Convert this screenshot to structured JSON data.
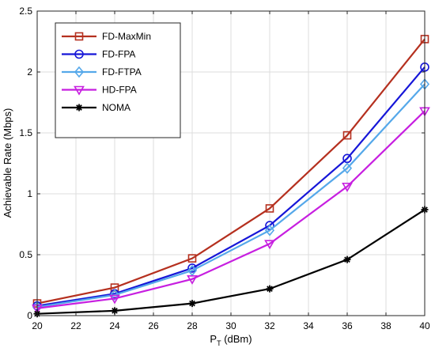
{
  "chart_data": {
    "type": "line",
    "title": "",
    "xlabel_main": "P",
    "xlabel_sub": "T",
    "xlabel_rest": " (dBm)",
    "ylabel": "Achievable Rate (Mbps)",
    "xlim": [
      20,
      40
    ],
    "ylim": [
      0,
      2.5
    ],
    "xticks": [
      "20",
      "22",
      "24",
      "26",
      "28",
      "30",
      "32",
      "34",
      "36",
      "38",
      "40"
    ],
    "yticks": [
      "0",
      "0.5",
      "1",
      "1.5",
      "2",
      "2.5"
    ],
    "grid": true,
    "legend_position": "top-left",
    "x": [
      20,
      24,
      28,
      32,
      36,
      40
    ],
    "series": [
      {
        "name": "FD-MaxMin",
        "color": "#b5301f",
        "marker": "square",
        "values": [
          0.1,
          0.23,
          0.47,
          0.88,
          1.48,
          2.27
        ]
      },
      {
        "name": "FD-FPA",
        "color": "#1616d8",
        "marker": "circle",
        "values": [
          0.08,
          0.18,
          0.39,
          0.74,
          1.29,
          2.04
        ]
      },
      {
        "name": "FD-FTPA",
        "color": "#55a8ea",
        "marker": "diamond",
        "values": [
          0.07,
          0.17,
          0.37,
          0.7,
          1.21,
          1.9
        ]
      },
      {
        "name": "HD-FPA",
        "color": "#c71fe0",
        "marker": "triangle-down",
        "values": [
          0.06,
          0.14,
          0.3,
          0.59,
          1.06,
          1.68
        ]
      },
      {
        "name": "NOMA",
        "color": "#000000",
        "marker": "asterisk",
        "values": [
          0.015,
          0.04,
          0.1,
          0.22,
          0.46,
          0.87
        ]
      }
    ]
  }
}
